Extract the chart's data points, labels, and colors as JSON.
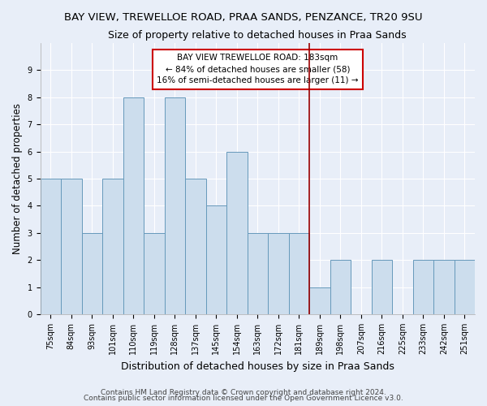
{
  "title": "BAY VIEW, TREWELLOE ROAD, PRAA SANDS, PENZANCE, TR20 9SU",
  "subtitle": "Size of property relative to detached houses in Praa Sands",
  "xlabel": "Distribution of detached houses by size in Praa Sands",
  "ylabel": "Number of detached properties",
  "footer1": "Contains HM Land Registry data © Crown copyright and database right 2024.",
  "footer2": "Contains public sector information licensed under the Open Government Licence v3.0.",
  "categories": [
    "75sqm",
    "84sqm",
    "93sqm",
    "101sqm",
    "110sqm",
    "119sqm",
    "128sqm",
    "137sqm",
    "145sqm",
    "154sqm",
    "163sqm",
    "172sqm",
    "181sqm",
    "189sqm",
    "198sqm",
    "207sqm",
    "216sqm",
    "225sqm",
    "233sqm",
    "242sqm",
    "251sqm"
  ],
  "values": [
    5,
    5,
    3,
    5,
    8,
    3,
    8,
    5,
    4,
    6,
    3,
    3,
    3,
    1,
    2,
    0,
    2,
    0,
    2,
    2,
    2
  ],
  "bar_color": "#ccdded",
  "bar_edge_color": "#6699bb",
  "vline_color": "#990000",
  "annotation_text": "BAY VIEW TREWELLOE ROAD: 183sqm\n← 84% of detached houses are smaller (58)\n16% of semi-detached houses are larger (11) →",
  "annotation_box_color": "#ffffff",
  "annotation_box_edge": "#cc0000",
  "ylim": [
    0,
    10
  ],
  "yticks": [
    0,
    1,
    2,
    3,
    4,
    5,
    6,
    7,
    8,
    9,
    10
  ],
  "bg_color": "#e8eef8",
  "grid_color": "#ffffff",
  "title_fontsize": 9.5,
  "subtitle_fontsize": 9,
  "ylabel_fontsize": 8.5,
  "xlabel_fontsize": 9,
  "tick_fontsize": 7,
  "annotation_fontsize": 7.5,
  "footer_fontsize": 6.5
}
